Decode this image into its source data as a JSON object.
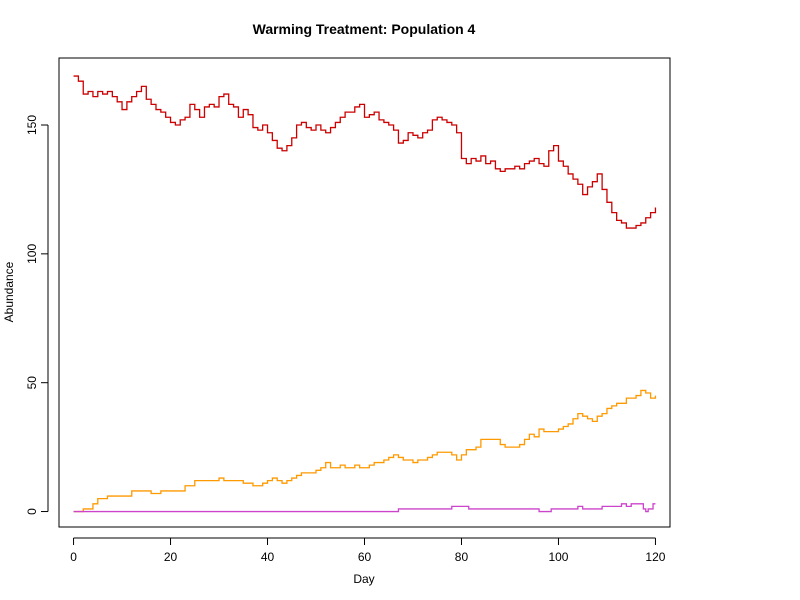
{
  "chart_data": {
    "type": "line",
    "title": "Warming Treatment: Population 4",
    "xlabel": "Day",
    "ylabel": "Abundance",
    "xlim": [
      -3,
      123
    ],
    "ylim": [
      -6,
      176
    ],
    "x_ticks": [
      0,
      20,
      40,
      60,
      80,
      100,
      120
    ],
    "y_ticks": [
      0,
      50,
      100,
      150
    ],
    "legend": "none",
    "grid": false,
    "series": [
      {
        "color": "#cc0000",
        "points": [
          [
            0,
            169
          ],
          [
            1,
            167
          ],
          [
            2,
            162
          ],
          [
            3,
            163
          ],
          [
            4,
            161
          ],
          [
            5,
            163
          ],
          [
            6,
            162
          ],
          [
            7,
            163
          ],
          [
            8,
            161
          ],
          [
            9,
            159
          ],
          [
            10,
            156
          ],
          [
            11,
            159
          ],
          [
            12,
            161
          ],
          [
            13,
            163
          ],
          [
            14,
            165
          ],
          [
            15,
            160
          ],
          [
            16,
            158
          ],
          [
            17,
            156
          ],
          [
            18,
            155
          ],
          [
            19,
            153
          ],
          [
            20,
            151
          ],
          [
            21,
            150
          ],
          [
            22,
            152
          ],
          [
            23,
            153
          ],
          [
            24,
            158
          ],
          [
            25,
            156
          ],
          [
            26,
            153
          ],
          [
            27,
            157
          ],
          [
            28,
            158
          ],
          [
            29,
            157
          ],
          [
            30,
            161
          ],
          [
            31,
            162
          ],
          [
            32,
            158
          ],
          [
            33,
            157
          ],
          [
            34,
            153
          ],
          [
            35,
            156
          ],
          [
            36,
            154
          ],
          [
            37,
            149
          ],
          [
            38,
            148
          ],
          [
            39,
            150
          ],
          [
            40,
            147
          ],
          [
            41,
            144
          ],
          [
            42,
            141
          ],
          [
            43,
            140
          ],
          [
            44,
            142
          ],
          [
            45,
            145
          ],
          [
            46,
            150
          ],
          [
            47,
            151
          ],
          [
            48,
            149
          ],
          [
            49,
            148
          ],
          [
            50,
            150
          ],
          [
            51,
            148
          ],
          [
            52,
            147
          ],
          [
            53,
            149
          ],
          [
            54,
            151
          ],
          [
            55,
            153
          ],
          [
            56,
            155
          ],
          [
            57,
            155
          ],
          [
            58,
            157
          ],
          [
            59,
            158
          ],
          [
            60,
            153
          ],
          [
            61,
            154
          ],
          [
            62,
            155
          ],
          [
            63,
            152
          ],
          [
            64,
            151
          ],
          [
            65,
            150
          ],
          [
            66,
            148
          ],
          [
            67,
            143
          ],
          [
            68,
            144
          ],
          [
            69,
            147
          ],
          [
            70,
            146
          ],
          [
            71,
            145
          ],
          [
            72,
            147
          ],
          [
            73,
            148
          ],
          [
            74,
            152
          ],
          [
            75,
            153
          ],
          [
            76,
            152
          ],
          [
            77,
            151
          ],
          [
            78,
            150
          ],
          [
            79,
            147
          ],
          [
            80,
            137
          ],
          [
            81,
            135
          ],
          [
            82,
            137
          ],
          [
            83,
            136
          ],
          [
            84,
            138
          ],
          [
            85,
            135
          ],
          [
            86,
            136
          ],
          [
            87,
            133
          ],
          [
            88,
            132
          ],
          [
            89,
            133
          ],
          [
            90,
            133
          ],
          [
            91,
            134
          ],
          [
            92,
            133
          ],
          [
            93,
            135
          ],
          [
            94,
            136
          ],
          [
            95,
            137
          ],
          [
            96,
            135
          ],
          [
            97,
            134
          ],
          [
            98,
            140
          ],
          [
            99,
            142
          ],
          [
            100,
            136
          ],
          [
            101,
            134
          ],
          [
            102,
            131
          ],
          [
            103,
            129
          ],
          [
            104,
            127
          ],
          [
            105,
            123
          ],
          [
            106,
            126
          ],
          [
            107,
            128
          ],
          [
            108,
            131
          ],
          [
            109,
            125
          ],
          [
            110,
            120
          ],
          [
            111,
            116
          ],
          [
            112,
            113
          ],
          [
            113,
            112
          ],
          [
            114,
            110
          ],
          [
            115,
            110
          ],
          [
            116,
            111
          ],
          [
            117,
            112
          ],
          [
            118,
            114
          ],
          [
            119,
            116
          ],
          [
            120,
            118
          ]
        ]
      },
      {
        "color": "#ff9900",
        "points": [
          [
            0,
            0
          ],
          [
            1,
            0
          ],
          [
            2,
            1
          ],
          [
            3,
            1
          ],
          [
            4,
            3
          ],
          [
            5,
            5
          ],
          [
            6,
            5
          ],
          [
            7,
            6
          ],
          [
            8,
            6
          ],
          [
            9,
            6
          ],
          [
            10,
            6
          ],
          [
            12,
            8
          ],
          [
            14,
            8
          ],
          [
            16,
            7
          ],
          [
            17,
            7
          ],
          [
            18,
            8
          ],
          [
            20,
            8
          ],
          [
            22,
            8
          ],
          [
            23,
            10
          ],
          [
            25,
            12
          ],
          [
            27,
            12
          ],
          [
            29,
            12
          ],
          [
            30,
            13
          ],
          [
            31,
            12
          ],
          [
            33,
            12
          ],
          [
            35,
            11
          ],
          [
            37,
            10
          ],
          [
            39,
            11
          ],
          [
            40,
            12
          ],
          [
            41,
            13
          ],
          [
            42,
            12
          ],
          [
            43,
            11
          ],
          [
            44,
            12
          ],
          [
            45,
            13
          ],
          [
            46,
            14
          ],
          [
            47,
            15
          ],
          [
            48,
            15
          ],
          [
            49,
            15
          ],
          [
            50,
            16
          ],
          [
            51,
            17
          ],
          [
            52,
            19
          ],
          [
            53,
            17
          ],
          [
            54,
            17
          ],
          [
            55,
            18
          ],
          [
            56,
            17
          ],
          [
            57,
            17
          ],
          [
            58,
            18
          ],
          [
            59,
            17
          ],
          [
            60,
            17
          ],
          [
            61,
            18
          ],
          [
            62,
            19
          ],
          [
            63,
            19
          ],
          [
            64,
            20
          ],
          [
            65,
            21
          ],
          [
            66,
            22
          ],
          [
            67,
            21
          ],
          [
            68,
            20
          ],
          [
            69,
            20
          ],
          [
            70,
            19
          ],
          [
            71,
            20
          ],
          [
            72,
            20
          ],
          [
            73,
            21
          ],
          [
            74,
            22
          ],
          [
            75,
            23
          ],
          [
            76,
            23
          ],
          [
            77,
            23
          ],
          [
            78,
            22
          ],
          [
            79,
            20
          ],
          [
            80,
            22
          ],
          [
            81,
            24
          ],
          [
            82,
            24
          ],
          [
            83,
            25
          ],
          [
            84,
            28
          ],
          [
            85,
            28
          ],
          [
            86,
            28
          ],
          [
            87,
            28
          ],
          [
            88,
            26
          ],
          [
            89,
            25
          ],
          [
            90,
            25
          ],
          [
            91,
            25
          ],
          [
            92,
            26
          ],
          [
            93,
            28
          ],
          [
            94,
            30
          ],
          [
            95,
            29
          ],
          [
            96,
            32
          ],
          [
            97,
            31
          ],
          [
            98,
            31
          ],
          [
            99,
            31
          ],
          [
            100,
            32
          ],
          [
            101,
            33
          ],
          [
            102,
            34
          ],
          [
            103,
            36
          ],
          [
            104,
            38
          ],
          [
            105,
            37
          ],
          [
            106,
            36
          ],
          [
            107,
            35
          ],
          [
            108,
            37
          ],
          [
            109,
            38
          ],
          [
            110,
            40
          ],
          [
            111,
            41
          ],
          [
            112,
            42
          ],
          [
            113,
            42
          ],
          [
            114,
            44
          ],
          [
            115,
            44
          ],
          [
            116,
            45
          ],
          [
            117,
            47
          ],
          [
            118,
            46
          ],
          [
            119,
            44
          ],
          [
            120,
            45
          ]
        ]
      },
      {
        "color": "#cc44cc",
        "points": [
          [
            0,
            0
          ],
          [
            66.5,
            0
          ],
          [
            67,
            1
          ],
          [
            77,
            1
          ],
          [
            78,
            2
          ],
          [
            81,
            2
          ],
          [
            81.5,
            1
          ],
          [
            95,
            1
          ],
          [
            96,
            0
          ],
          [
            98,
            0
          ],
          [
            98.5,
            1
          ],
          [
            103,
            1
          ],
          [
            104,
            2
          ],
          [
            105,
            1
          ],
          [
            108,
            1
          ],
          [
            109,
            2
          ],
          [
            112,
            2
          ],
          [
            113,
            3
          ],
          [
            114,
            2
          ],
          [
            115,
            3
          ],
          [
            117,
            3
          ],
          [
            117.5,
            1
          ],
          [
            118,
            0
          ],
          [
            118.5,
            1
          ],
          [
            119,
            1
          ],
          [
            119.5,
            3
          ],
          [
            120,
            3
          ]
        ]
      }
    ]
  }
}
